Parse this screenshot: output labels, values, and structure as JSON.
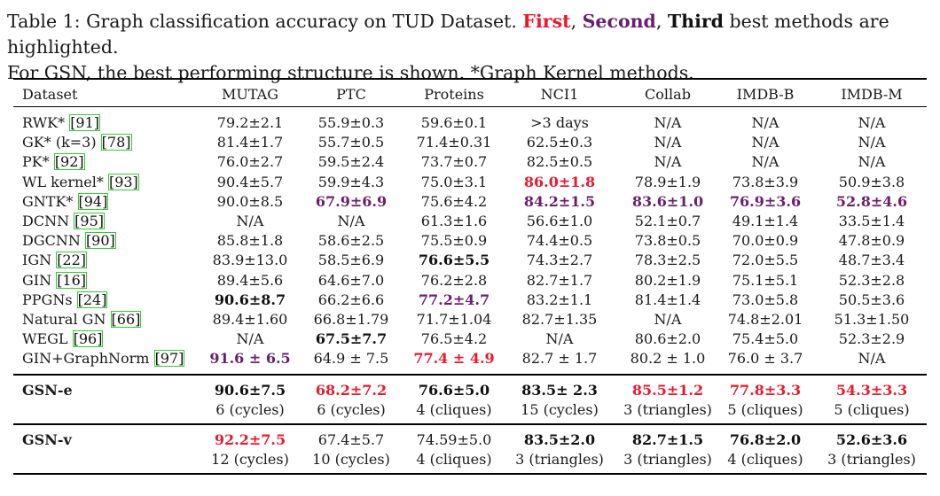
{
  "caption": {
    "line1_a": "Table 1: Graph classification accuracy on TUD Dataset. ",
    "first": "First",
    "sep1": ", ",
    "second": "Second",
    "sep2": ", ",
    "third": "Third",
    "line1_b": " best methods are highlighted.",
    "line2": "For GSN, the best performing structure is shown. *Graph Kernel methods."
  },
  "header": [
    "Dataset",
    "MUTAG",
    "PTC",
    "Proteins",
    "NCI1",
    "Collab",
    "IMDB-B",
    "IMDB-M"
  ],
  "rows": [
    {
      "name": "RWK* ",
      "ref": "[91]",
      "cells": [
        [
          "79.2±2.1",
          ""
        ],
        [
          "55.9±0.3",
          ""
        ],
        [
          "59.6±0.1",
          ""
        ],
        [
          ">3 days",
          ""
        ],
        [
          "N/A",
          ""
        ],
        [
          "N/A",
          ""
        ],
        [
          "N/A",
          ""
        ]
      ]
    },
    {
      "name": "GK* (k=3) ",
      "ref": "[78]",
      "cells": [
        [
          "81.4±1.7",
          ""
        ],
        [
          "55.7±0.5",
          ""
        ],
        [
          "71.4±0.31",
          ""
        ],
        [
          "62.5±0.3",
          ""
        ],
        [
          "N/A",
          ""
        ],
        [
          "N/A",
          ""
        ],
        [
          "N/A",
          ""
        ]
      ]
    },
    {
      "name": "PK* ",
      "ref": "[92]",
      "cells": [
        [
          "76.0±2.7",
          ""
        ],
        [
          "59.5±2.4",
          ""
        ],
        [
          "73.7±0.7",
          ""
        ],
        [
          "82.5±0.5",
          ""
        ],
        [
          "N/A",
          ""
        ],
        [
          "N/A",
          ""
        ],
        [
          "N/A",
          ""
        ]
      ]
    },
    {
      "name": "WL kernel* ",
      "ref": "[93]",
      "cells": [
        [
          "90.4±5.7",
          ""
        ],
        [
          "59.9±4.3",
          ""
        ],
        [
          "75.0±3.1",
          ""
        ],
        [
          "86.0±1.8",
          "first"
        ],
        [
          "78.9±1.9",
          ""
        ],
        [
          "73.8±3.9",
          ""
        ],
        [
          "50.9±3.8",
          ""
        ]
      ]
    },
    {
      "name": "GNTK* ",
      "ref": "[94]",
      "cells": [
        [
          "90.0±8.5",
          ""
        ],
        [
          "67.9±6.9",
          "second"
        ],
        [
          "75.6±4.2",
          ""
        ],
        [
          "84.2±1.5",
          "second"
        ],
        [
          "83.6±1.0",
          "second"
        ],
        [
          "76.9±3.6",
          "second"
        ],
        [
          "52.8±4.6",
          "second"
        ]
      ]
    },
    {
      "name": "DCNN ",
      "ref": "[95]",
      "cells": [
        [
          "N/A",
          ""
        ],
        [
          "N/A",
          ""
        ],
        [
          "61.3±1.6",
          ""
        ],
        [
          "56.6±1.0",
          ""
        ],
        [
          "52.1±0.7",
          ""
        ],
        [
          "49.1±1.4",
          ""
        ],
        [
          "33.5±1.4",
          ""
        ]
      ]
    },
    {
      "name": "DGCNN ",
      "ref": "[90]",
      "cells": [
        [
          "85.8±1.8",
          ""
        ],
        [
          "58.6±2.5",
          ""
        ],
        [
          "75.5±0.9",
          ""
        ],
        [
          "74.4±0.5",
          ""
        ],
        [
          "73.8±0.5",
          ""
        ],
        [
          "70.0±0.9",
          ""
        ],
        [
          "47.8±0.9",
          ""
        ]
      ]
    },
    {
      "name": "IGN ",
      "ref": "[22]",
      "cells": [
        [
          "83.9±13.0",
          ""
        ],
        [
          "58.5±6.9",
          ""
        ],
        [
          "76.6±5.5",
          "third"
        ],
        [
          "74.3±2.7",
          ""
        ],
        [
          "78.3±2.5",
          ""
        ],
        [
          "72.0±5.5",
          ""
        ],
        [
          "48.7±3.4",
          ""
        ]
      ]
    },
    {
      "name": "GIN ",
      "ref": "[16]",
      "cells": [
        [
          "89.4±5.6",
          ""
        ],
        [
          "64.6±7.0",
          ""
        ],
        [
          "76.2±2.8",
          ""
        ],
        [
          "82.7±1.7",
          ""
        ],
        [
          "80.2±1.9",
          ""
        ],
        [
          "75.1±5.1",
          ""
        ],
        [
          "52.3±2.8",
          ""
        ]
      ]
    },
    {
      "name": "PPGNs ",
      "ref": "[24]",
      "cells": [
        [
          "90.6±8.7",
          "third"
        ],
        [
          "66.2±6.6",
          ""
        ],
        [
          "77.2±4.7",
          "second"
        ],
        [
          "83.2±1.1",
          ""
        ],
        [
          "81.4±1.4",
          ""
        ],
        [
          "73.0±5.8",
          ""
        ],
        [
          "50.5±3.6",
          ""
        ]
      ]
    },
    {
      "name": "Natural GN ",
      "ref": "[66]",
      "cells": [
        [
          "89.4±1.60",
          ""
        ],
        [
          "66.8±1.79",
          ""
        ],
        [
          "71.7±1.04",
          ""
        ],
        [
          "82.7±1.35",
          ""
        ],
        [
          "N/A",
          ""
        ],
        [
          "74.8±2.01",
          ""
        ],
        [
          "51.3±1.50",
          ""
        ]
      ]
    },
    {
      "name": "WEGL ",
      "ref": "[96]",
      "cells": [
        [
          "N/A",
          ""
        ],
        [
          "67.5±7.7",
          "third"
        ],
        [
          "76.5±4.2",
          ""
        ],
        [
          "N/A",
          ""
        ],
        [
          "80.6±2.0",
          ""
        ],
        [
          "75.4±5.0",
          ""
        ],
        [
          "52.3±2.9",
          ""
        ]
      ]
    },
    {
      "name": "GIN+GraphNorm ",
      "ref": "[97]",
      "cells": [
        [
          "91.6 ± 6.5",
          "second"
        ],
        [
          "64.9 ± 7.5",
          ""
        ],
        [
          "77.4 ± 4.9",
          "first"
        ],
        [
          "82.7 ± 1.7",
          ""
        ],
        [
          "80.2 ± 1.0",
          ""
        ],
        [
          "76.0 ± 3.7",
          ""
        ],
        [
          "N/A",
          ""
        ]
      ]
    }
  ],
  "gsn": [
    {
      "name": "GSN-e",
      "cells": [
        [
          "90.6±7.5",
          "third"
        ],
        [
          "68.2±7.2",
          "first"
        ],
        [
          "76.6±5.0",
          "third"
        ],
        [
          "83.5± 2.3",
          "third"
        ],
        [
          "85.5±1.2",
          "first"
        ],
        [
          "77.8±3.3",
          "first"
        ],
        [
          "54.3±3.3",
          "first"
        ]
      ],
      "structs": [
        "6 (cycles)",
        "6 (cycles)",
        "4 (cliques)",
        "15 (cycles)",
        "3 (triangles)",
        "5 (cliques)",
        "5 (cliques)"
      ]
    },
    {
      "name": "GSN-v",
      "cells": [
        [
          "92.2±7.5",
          "first"
        ],
        [
          "67.4±5.7",
          ""
        ],
        [
          "74.59±5.0",
          ""
        ],
        [
          "83.5±2.0",
          "third"
        ],
        [
          "82.7±1.5",
          "third"
        ],
        [
          "76.8±2.0",
          "third"
        ],
        [
          "52.6±3.6",
          "third"
        ]
      ],
      "structs": [
        "12 (cycles)",
        "10 (cycles)",
        "4 (cliques)",
        "3 (triangles)",
        "3 (triangles)",
        "4 (cliques)",
        "3 (triangles)"
      ]
    }
  ]
}
